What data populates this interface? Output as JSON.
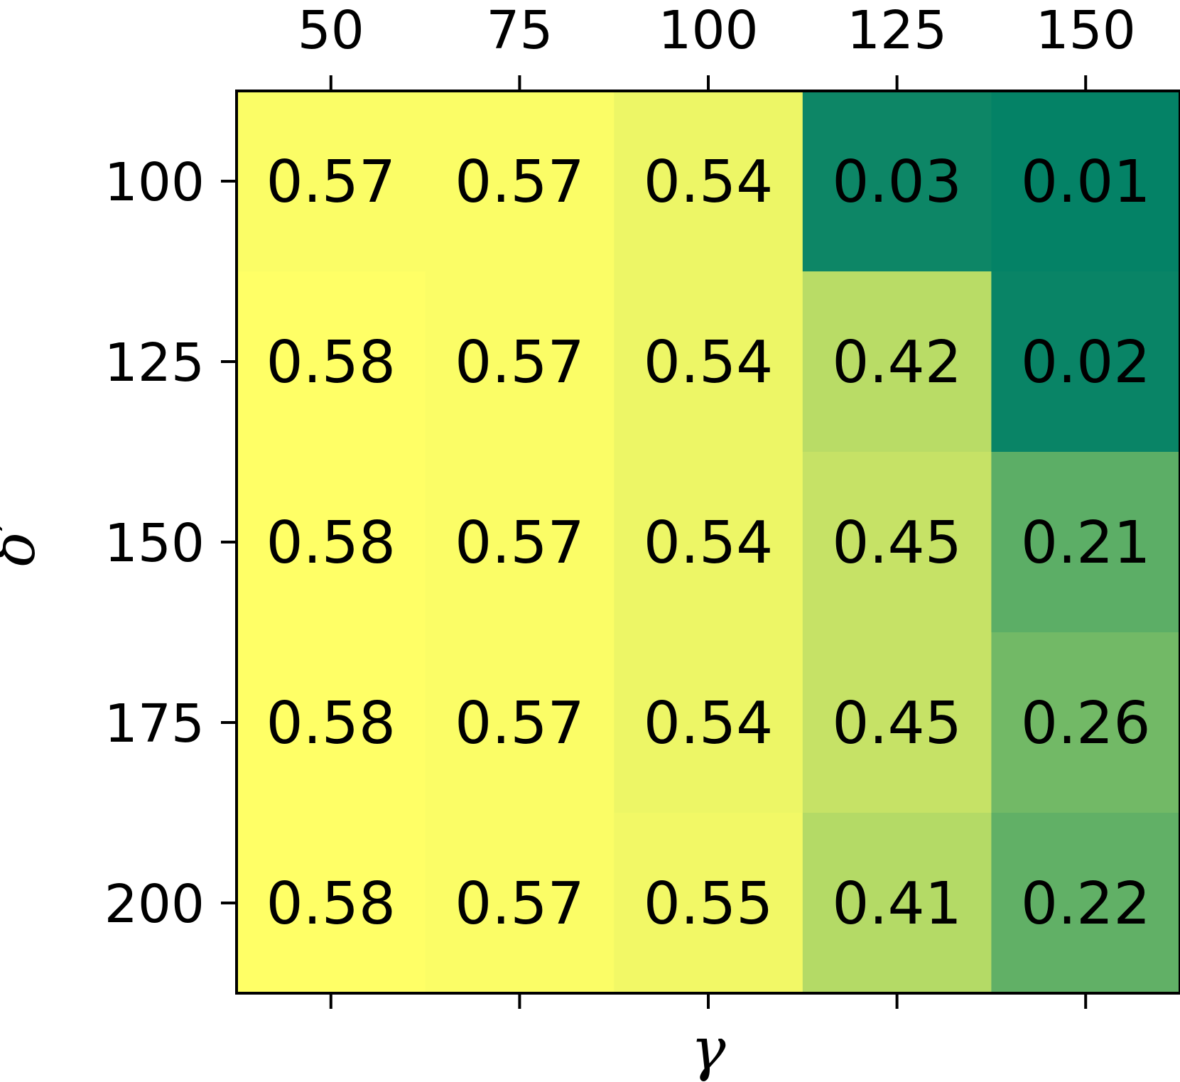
{
  "chart_data": {
    "type": "heatmap",
    "xlabel": "γ",
    "ylabel": "δ′",
    "x_ticks": [
      "50",
      "75",
      "100",
      "125",
      "150"
    ],
    "y_ticks": [
      "100",
      "125",
      "150",
      "175",
      "200"
    ],
    "x_tick_position": "top",
    "values": [
      [
        0.57,
        0.57,
        0.54,
        0.03,
        0.01
      ],
      [
        0.58,
        0.57,
        0.54,
        0.42,
        0.02
      ],
      [
        0.58,
        0.57,
        0.54,
        0.45,
        0.21
      ],
      [
        0.58,
        0.57,
        0.54,
        0.45,
        0.26
      ],
      [
        0.58,
        0.57,
        0.55,
        0.41,
        0.22
      ]
    ],
    "colormap": "summer_r",
    "vmin": 0.0,
    "vmax": 0.58,
    "colorbar": false,
    "grid": false
  }
}
